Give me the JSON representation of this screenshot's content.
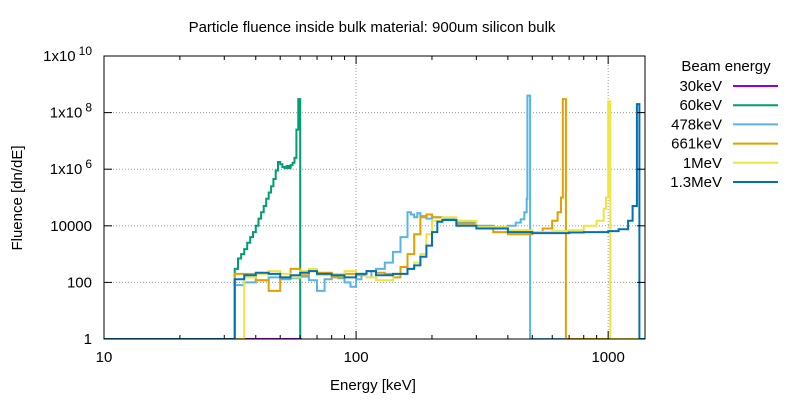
{
  "chart_data": {
    "type": "line",
    "title": "Particle fluence inside bulk material: 900um silicon bulk",
    "xlabel": "Energy [keV]",
    "ylabel": "Fluence [dn/dE]",
    "x_scale": "log",
    "y_scale": "log",
    "xlim": [
      10,
      1400
    ],
    "ylim": [
      1,
      10000000000
    ],
    "grid": true,
    "legend": {
      "title": "Beam energy",
      "position": "right-outside"
    },
    "x_ticks": [
      {
        "value": 10,
        "label": "10"
      },
      {
        "value": 100,
        "label": "100"
      },
      {
        "value": 1000,
        "label": "1000"
      }
    ],
    "y_ticks": [
      {
        "value": 1,
        "label": "1"
      },
      {
        "value": 100,
        "label": "100"
      },
      {
        "value": 10000,
        "label": "10000"
      },
      {
        "value": 1000000,
        "label": "1x10",
        "exp": "6"
      },
      {
        "value": 100000000,
        "label": "1x10",
        "exp": "8"
      },
      {
        "value": 10000000000,
        "label": "1x10",
        "exp": "10"
      }
    ],
    "series": [
      {
        "name": "30keV",
        "color": "#9400d3",
        "x": [
          10,
          30,
          33,
          40,
          50,
          60
        ],
        "y": [
          1,
          1,
          1,
          1,
          1,
          1
        ]
      },
      {
        "name": "60keV",
        "color": "#009e73",
        "x": [
          10,
          32,
          33,
          34,
          35,
          36,
          37,
          38,
          39,
          40,
          41,
          42,
          43,
          44,
          45,
          46,
          47,
          48,
          49,
          50,
          51,
          52,
          53,
          54,
          55,
          56,
          57,
          58,
          59,
          60,
          61
        ],
        "y": [
          1,
          1,
          300,
          700,
          1000,
          1500,
          2500,
          4000,
          6000,
          10000,
          18000,
          30000,
          50000,
          90000,
          150000,
          250000,
          450000,
          900000,
          1800000,
          1500000,
          1200000,
          1100000,
          1300000,
          1100000,
          1400000,
          1700000,
          2500000,
          25000000,
          300000000,
          1,
          1
        ]
      },
      {
        "name": "478keV",
        "color": "#56b4e9",
        "x": [
          10,
          32,
          33,
          36,
          40,
          45,
          50,
          55,
          60,
          65,
          70,
          75,
          80,
          85,
          90,
          95,
          100,
          105,
          110,
          115,
          120,
          130,
          140,
          150,
          160,
          165,
          170,
          175,
          180,
          190,
          200,
          220,
          250,
          300,
          350,
          400,
          430,
          450,
          465,
          475,
          478,
          490,
          1400
        ],
        "y": [
          1,
          1,
          80,
          100,
          120,
          150,
          130,
          140,
          160,
          120,
          50,
          130,
          180,
          140,
          100,
          70,
          130,
          200,
          150,
          250,
          300,
          500,
          1200,
          4000,
          30000,
          25000,
          20000,
          28000,
          22000,
          18000,
          20000,
          17000,
          13000,
          10000,
          9000,
          10000,
          13000,
          17000,
          30000,
          90000,
          400000000,
          1,
          1
        ]
      },
      {
        "name": "661keV",
        "color": "#e69f00",
        "x": [
          10,
          32,
          33,
          40,
          45,
          50,
          55,
          60,
          65,
          70,
          80,
          90,
          100,
          110,
          120,
          130,
          140,
          150,
          160,
          170,
          180,
          190,
          200,
          220,
          250,
          300,
          350,
          400,
          450,
          500,
          550,
          600,
          630,
          650,
          661,
          680,
          1400
        ],
        "y": [
          1,
          1,
          200,
          120,
          50,
          150,
          300,
          180,
          250,
          220,
          150,
          200,
          180,
          250,
          220,
          200,
          150,
          350,
          1000,
          5000,
          20000,
          25000,
          20000,
          16000,
          12000,
          8000,
          6000,
          5000,
          5000,
          6000,
          8000,
          15000,
          30000,
          100000,
          300000000,
          1,
          1
        ]
      },
      {
        "name": "1MeV",
        "color": "#f0e442",
        "x": [
          10,
          35,
          36,
          40,
          45,
          50,
          55,
          60,
          65,
          70,
          80,
          90,
          100,
          110,
          120,
          140,
          160,
          170,
          180,
          190,
          200,
          220,
          250,
          300,
          400,
          500,
          600,
          700,
          800,
          900,
          960,
          980,
          1000,
          1020,
          1400
        ],
        "y": [
          1,
          1,
          150,
          200,
          250,
          200,
          150,
          250,
          300,
          180,
          200,
          250,
          200,
          150,
          120,
          200,
          300,
          500,
          1000,
          5000,
          15000,
          20000,
          15000,
          9000,
          7000,
          6000,
          6500,
          7000,
          10000,
          15000,
          40000,
          100000,
          250000000,
          1,
          1
        ]
      },
      {
        "name": "1.3MeV",
        "color": "#0072b2",
        "x": [
          10,
          32,
          33,
          36,
          40,
          45,
          50,
          55,
          60,
          65,
          70,
          80,
          90,
          100,
          110,
          120,
          140,
          160,
          170,
          180,
          190,
          200,
          210,
          220,
          250,
          300,
          400,
          500,
          600,
          700,
          800,
          900,
          1000,
          1100,
          1200,
          1250,
          1300,
          1330,
          1400
        ],
        "y": [
          1,
          1,
          130,
          180,
          220,
          200,
          150,
          180,
          220,
          250,
          200,
          180,
          150,
          200,
          250,
          180,
          200,
          300,
          400,
          800,
          2000,
          6000,
          14000,
          16000,
          10000,
          8000,
          6000,
          5500,
          5500,
          5800,
          6000,
          6000,
          6500,
          7500,
          15000,
          50000,
          200000000,
          1,
          1
        ]
      }
    ]
  }
}
